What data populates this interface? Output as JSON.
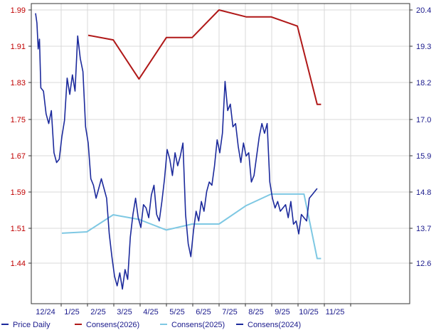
{
  "chart_data": {
    "type": "line",
    "x_labels": [
      "12/24",
      "1/25",
      "2/25",
      "3/25",
      "4/25",
      "5/25",
      "6/25",
      "7/25",
      "8/25",
      "9/25",
      "10/25",
      "11/25"
    ],
    "left_axis": {
      "ticks": [
        "1.99",
        "1.91",
        "1.83",
        "1.75",
        "1.67",
        "1.59",
        "1.51",
        "1.44"
      ],
      "ylim": [
        1.36,
        1.99
      ]
    },
    "right_axis": {
      "ticks": [
        "20.4",
        "19.3",
        "18.2",
        "17.0",
        "15.9",
        "14.8",
        "13.7",
        "12.6"
      ],
      "ylim": [
        11.6,
        20.4
      ]
    },
    "colors": {
      "price": "#1c2a9c",
      "consens_2026": "#b01818",
      "consens_2025": "#7ec8e3",
      "consens_2024": "#1c2a9c",
      "left_ticks": "#c00000",
      "right_ticks": "#1a1a8c"
    },
    "legend": [
      {
        "label": "Price Daily",
        "color": "#1c2a9c"
      },
      {
        "label": "Consens(2026)",
        "color": "#b01818"
      },
      {
        "label": "Consens(2025)",
        "color": "#7ec8e3"
      },
      {
        "label": "Consens(2024)",
        "color": "#1c2a9c"
      }
    ],
    "series": [
      {
        "name": "Price Daily",
        "axis": "right",
        "x": [
          0.0,
          0.05,
          0.1,
          0.15,
          0.2,
          0.3,
          0.4,
          0.5,
          0.6,
          0.7,
          0.8,
          0.9,
          1.0,
          1.1,
          1.2,
          1.3,
          1.4,
          1.5,
          1.6,
          1.7,
          1.8,
          1.9,
          2.0,
          2.1,
          2.2,
          2.3,
          2.4,
          2.5,
          2.6,
          2.7,
          2.8,
          2.9,
          3.0,
          3.1,
          3.2,
          3.3,
          3.4,
          3.5,
          3.6,
          3.7,
          3.8,
          3.9,
          4.0,
          4.1,
          4.2,
          4.3,
          4.4,
          4.5,
          4.6,
          4.7,
          4.8,
          4.9,
          5.0,
          5.1,
          5.2,
          5.3,
          5.4,
          5.5,
          5.6,
          5.7,
          5.8,
          5.9,
          6.0,
          6.1,
          6.2,
          6.3,
          6.4,
          6.5,
          6.6,
          6.7,
          6.8,
          6.9,
          7.0,
          7.1,
          7.2,
          7.3,
          7.4,
          7.5,
          7.6,
          7.7,
          7.8,
          7.9,
          8.0,
          8.1,
          8.2,
          8.3,
          8.4,
          8.5,
          8.6,
          8.7,
          8.8,
          8.9,
          9.0,
          9.1,
          9.2,
          9.3,
          9.4,
          9.5,
          9.6,
          9.7,
          9.8,
          9.9,
          10.0,
          10.1,
          10.2,
          10.3,
          10.4,
          10.5,
          10.6,
          10.7
        ],
        "values": [
          20.3,
          20.0,
          19.2,
          19.5,
          18.0,
          17.9,
          17.2,
          16.9,
          17.3,
          16.0,
          15.7,
          15.8,
          16.5,
          17.0,
          18.3,
          17.8,
          18.4,
          17.9,
          19.6,
          18.9,
          18.5,
          16.8,
          16.3,
          15.2,
          15.0,
          14.6,
          14.9,
          15.2,
          14.9,
          14.6,
          13.5,
          12.8,
          12.2,
          11.9,
          12.3,
          11.8,
          12.4,
          12.1,
          13.4,
          14.1,
          14.6,
          14.0,
          13.7,
          14.4,
          14.3,
          14.0,
          14.7,
          15.0,
          14.1,
          13.9,
          14.5,
          15.2,
          16.1,
          15.8,
          15.3,
          16.0,
          15.6,
          15.9,
          16.3,
          14.1,
          13.2,
          12.8,
          13.6,
          14.2,
          13.9,
          14.5,
          14.2,
          14.8,
          15.1,
          15.0,
          15.6,
          16.4,
          16.0,
          16.6,
          18.2,
          17.3,
          17.5,
          16.8,
          16.9,
          16.2,
          15.7,
          16.3,
          15.9,
          16.0,
          15.1,
          15.3,
          15.9,
          16.5,
          16.9,
          16.6,
          16.9,
          15.1,
          14.6,
          14.3,
          14.5,
          14.2,
          14.3,
          14.4,
          14.0,
          14.5,
          13.8,
          13.9,
          13.5,
          14.1,
          14.0,
          13.9,
          14.6,
          14.7,
          14.8,
          14.9
        ]
      },
      {
        "name": "Consens(2026)",
        "axis": "left",
        "x": [
          2.0,
          2.95,
          3.93,
          4.97,
          5.95,
          6.97,
          8.0,
          8.95,
          9.95,
          10.7,
          10.85
        ],
        "values": [
          1.935,
          1.925,
          1.84,
          1.93,
          1.93,
          1.99,
          1.975,
          1.975,
          1.955,
          1.785,
          1.785
        ]
      },
      {
        "name": "Consens(2025)",
        "axis": "left",
        "x": [
          1.0,
          1.95,
          2.95,
          3.93,
          4.97,
          5.95,
          6.97,
          8.0,
          8.95,
          9.95,
          10.2,
          10.7,
          10.85
        ],
        "values": [
          1.505,
          1.508,
          1.545,
          1.535,
          1.512,
          1.525,
          1.525,
          1.565,
          1.59,
          1.59,
          1.59,
          1.45,
          1.45
        ]
      }
    ]
  }
}
